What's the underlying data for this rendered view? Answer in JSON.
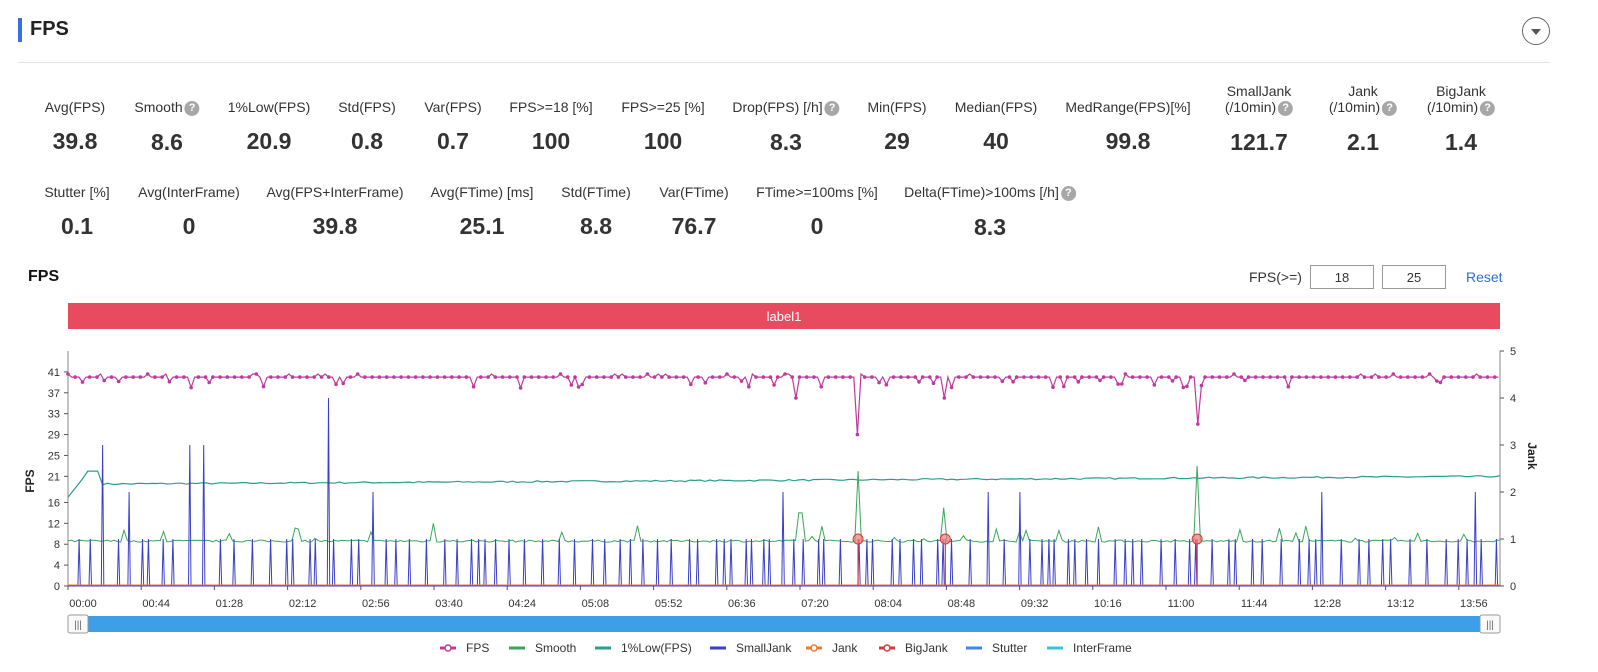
{
  "header": {
    "title": "FPS"
  },
  "metrics_row1": [
    {
      "label": "Avg(FPS)",
      "value": "39.8",
      "help": false,
      "cx": 75
    },
    {
      "label": "Smooth",
      "value": "8.6",
      "help": true,
      "cx": 167
    },
    {
      "label": "1%Low(FPS)",
      "value": "20.9",
      "help": false,
      "cx": 269
    },
    {
      "label": "Std(FPS)",
      "value": "0.8",
      "help": false,
      "cx": 367
    },
    {
      "label": "Var(FPS)",
      "value": "0.7",
      "help": false,
      "cx": 453
    },
    {
      "label": "FPS>=18 [%]",
      "value": "100",
      "help": false,
      "cx": 551
    },
    {
      "label": "FPS>=25 [%]",
      "value": "100",
      "help": false,
      "cx": 663
    },
    {
      "label": "Drop(FPS) [/h]",
      "value": "8.3",
      "help": true,
      "cx": 786
    },
    {
      "label": "Min(FPS)",
      "value": "29",
      "help": false,
      "cx": 897
    },
    {
      "label": "Median(FPS)",
      "value": "40",
      "help": false,
      "cx": 996
    },
    {
      "label": "MedRange(FPS)[%]",
      "value": "99.8",
      "help": false,
      "cx": 1128
    },
    {
      "label": "SmallJank\n(/10min)",
      "value": "121.7",
      "help": true,
      "cx": 1259
    },
    {
      "label": "Jank\n(/10min)",
      "value": "2.1",
      "help": true,
      "cx": 1363
    },
    {
      "label": "BigJank\n(/10min)",
      "value": "1.4",
      "help": true,
      "cx": 1461
    }
  ],
  "metrics_row2": [
    {
      "label": "Stutter [%]",
      "value": "0.1",
      "help": false,
      "cx": 77
    },
    {
      "label": "Avg(InterFrame)",
      "value": "0",
      "help": false,
      "cx": 189
    },
    {
      "label": "Avg(FPS+InterFrame)",
      "value": "39.8",
      "help": false,
      "cx": 335
    },
    {
      "label": "Avg(FTime) [ms]",
      "value": "25.1",
      "help": false,
      "cx": 482
    },
    {
      "label": "Std(FTime)",
      "value": "8.8",
      "help": false,
      "cx": 596
    },
    {
      "label": "Var(FTime)",
      "value": "76.7",
      "help": false,
      "cx": 694
    },
    {
      "label": "FTime>=100ms [%]",
      "value": "0",
      "help": false,
      "cx": 817
    },
    {
      "label": "Delta(FTime)>100ms [/h]",
      "value": "8.3",
      "help": true,
      "cx": 990
    }
  ],
  "chart_title": "FPS",
  "threshold": {
    "label": "FPS(>=)",
    "low": "18",
    "high": "25",
    "reset": "Reset"
  },
  "colors": {
    "accent": "#3b6ee0",
    "label_band": "#e84a5f",
    "slider": "#3d9fe6"
  },
  "chart_data": {
    "type": "line",
    "band_label": "label1",
    "x_ticks": [
      "00:00",
      "00:44",
      "01:28",
      "02:12",
      "02:56",
      "03:40",
      "04:24",
      "05:08",
      "05:52",
      "06:36",
      "07:20",
      "08:04",
      "08:48",
      "09:32",
      "10:16",
      "11:00",
      "11:44",
      "12:28",
      "13:12",
      "13:56"
    ],
    "x_range_seconds": [
      0,
      870
    ],
    "y_left": {
      "label": "FPS",
      "ticks": [
        0,
        4,
        8,
        12,
        16,
        21,
        25,
        29,
        33,
        37,
        41
      ],
      "range": [
        0,
        45
      ]
    },
    "y_right": {
      "label": "Jank",
      "ticks": [
        0,
        1,
        2,
        3,
        4,
        5
      ],
      "range": [
        0,
        5
      ]
    },
    "series": [
      {
        "name": "FPS",
        "color": "#c0399f",
        "marker": true,
        "baseline": 40,
        "dips": [
          [
            480,
            29
          ],
          [
            533,
            36
          ],
          [
            686,
            31
          ],
          [
            442,
            36
          ],
          [
            74,
            38
          ]
        ]
      },
      {
        "name": "Smooth",
        "color": "#3aa55a",
        "baseline": 8.6,
        "spikes": [
          [
            480,
            22
          ],
          [
            686,
            23
          ],
          [
            445,
            14
          ],
          [
            532,
            15
          ],
          [
            222,
            12
          ]
        ]
      },
      {
        "name": "1%Low(FPS)",
        "color": "#2a9d8f",
        "start": 17,
        "end": 21
      },
      {
        "name": "SmallJank",
        "color": "#3b3fc8",
        "pulse_level": 1,
        "tall_spikes": [
          [
            20,
            3
          ],
          [
            84,
            3
          ],
          [
            156,
            4
          ],
          [
            38,
            2
          ],
          [
            75,
            3
          ]
        ]
      },
      {
        "name": "Jank",
        "color": "#f07a2a"
      },
      {
        "name": "BigJank",
        "color": "#d63a3a",
        "markers": [
          480,
          533,
          686
        ]
      },
      {
        "name": "Stutter",
        "color": "#3b8be0"
      },
      {
        "name": "InterFrame",
        "color": "#3ac2d6"
      }
    ]
  },
  "legend": [
    "FPS",
    "Smooth",
    "1%Low(FPS)",
    "SmallJank",
    "Jank",
    "BigJank",
    "Stutter",
    "InterFrame"
  ]
}
